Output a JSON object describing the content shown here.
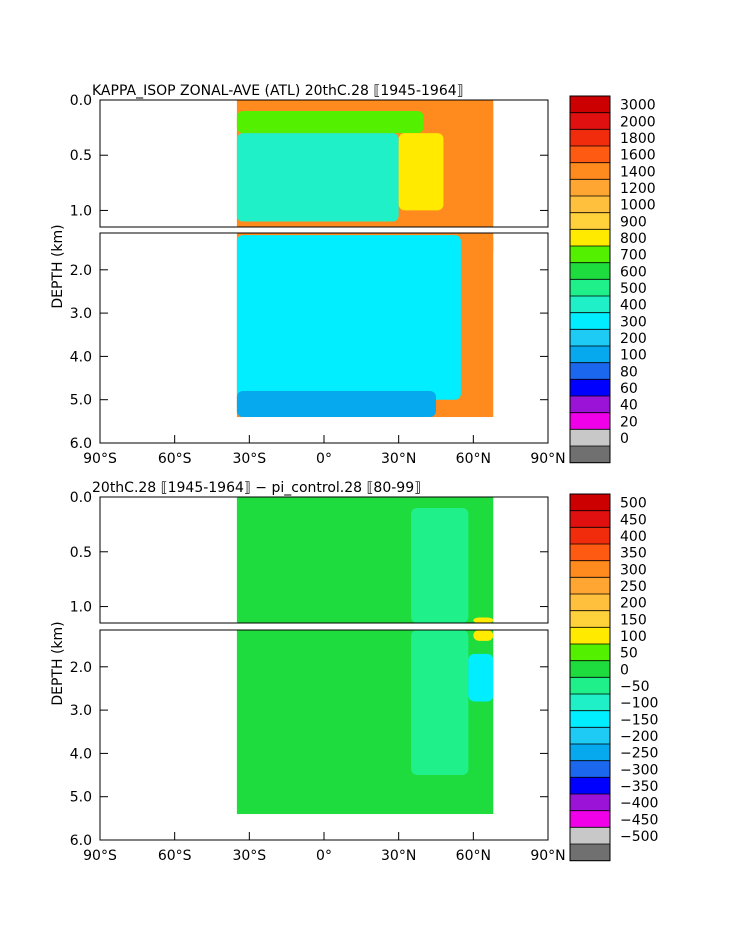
{
  "colors": {
    "background": "#ffffff",
    "frame": "#000000",
    "contour_line": "#000000",
    "ocean_fill_hint": "#00c8ff"
  },
  "chart_data": [
    {
      "type": "heatmap",
      "title": "KAPPA_ISOP ZONAL-AVE (ATL) 20thC.28 ⟦1945-1964⟧",
      "xlabel": "",
      "ylabel": "DEPTH (km)",
      "xlim": [
        -90,
        90
      ],
      "ylim_upper_panel": [
        0.0,
        1.15
      ],
      "ylim_lower_panel": [
        1.15,
        6.0
      ],
      "depth_split_km": 1.15,
      "x_ticks": [
        "90°S",
        "60°S",
        "30°S",
        "0°",
        "30°N",
        "60°N",
        "90°N"
      ],
      "y_ticks_upper": [
        "0.0",
        "0.5",
        "1.0"
      ],
      "y_ticks_lower": [
        "2.0",
        "3.0",
        "4.0",
        "5.0",
        "6.0"
      ],
      "colorbar": {
        "levels": [
          "3000",
          "2000",
          "1800",
          "1600",
          "1400",
          "1200",
          "1000",
          "900",
          "800",
          "700",
          "600",
          "500",
          "400",
          "300",
          "200",
          "100",
          "80",
          "60",
          "40",
          "20",
          "0"
        ],
        "colors": [
          "#cc0000",
          "#e01010",
          "#f02c0c",
          "#ff5a12",
          "#ff8a1e",
          "#ffa531",
          "#ffc03e",
          "#ffd23c",
          "#ffea00",
          "#53f000",
          "#1fdc3e",
          "#20f08a",
          "#20f0c8",
          "#00eeff",
          "#1ecbf5",
          "#06a8ee",
          "#1b68ee",
          "#0000ff",
          "#9a13d6",
          "#f000e8",
          "#c8c8c8",
          "#707070"
        ]
      },
      "data_domain": {
        "lat_min": -35,
        "lat_max": 68,
        "max_depth_km": 5.4
      },
      "field": [
        {
          "region": "surface layer 0-0.1 km",
          "lat_range": [
            -35,
            68
          ],
          "value": 1400
        },
        {
          "region": "upper subtropical 0.1-0.3 km",
          "lat_range": [
            -35,
            40
          ],
          "value": 700
        },
        {
          "region": "thermocline 0.3-1.1 km",
          "lat_range": [
            -35,
            30
          ],
          "value": 400
        },
        {
          "region": "N Atlantic mid-depth maximum",
          "lat_range": [
            30,
            48
          ],
          "value": 800
        },
        {
          "region": "subpolar boundary 0-1.7 km",
          "lat_range": [
            60,
            68
          ],
          "value": 1400
        },
        {
          "region": "deep interior 1.2-5 km",
          "lat_range": [
            -35,
            55
          ],
          "value": 300
        },
        {
          "region": "bottom water",
          "lat_range": [
            -35,
            45
          ],
          "value": 100
        }
      ]
    },
    {
      "type": "heatmap",
      "title": "20thC.28 ⟦1945-1964⟧ − pi_control.28 ⟦80-99⟧",
      "xlabel": "",
      "ylabel": "DEPTH (km)",
      "xlim": [
        -90,
        90
      ],
      "ylim_upper_panel": [
        0.0,
        1.15
      ],
      "ylim_lower_panel": [
        1.15,
        6.0
      ],
      "depth_split_km": 1.15,
      "x_ticks": [
        "90°S",
        "60°S",
        "30°S",
        "0°",
        "30°N",
        "60°N",
        "90°N"
      ],
      "y_ticks_upper": [
        "0.0",
        "0.5",
        "1.0"
      ],
      "y_ticks_lower": [
        "2.0",
        "3.0",
        "4.0",
        "5.0",
        "6.0"
      ],
      "colorbar": {
        "levels": [
          "500",
          "450",
          "400",
          "350",
          "300",
          "250",
          "200",
          "150",
          "100",
          "50",
          "0",
          "−50",
          "−100",
          "−150",
          "−200",
          "−250",
          "−300",
          "−350",
          "−400",
          "−450",
          "−500"
        ],
        "colors": [
          "#cc0000",
          "#e01010",
          "#f02c0c",
          "#ff5a12",
          "#ff8a1e",
          "#ffa531",
          "#ffc03e",
          "#ffd23c",
          "#ffea00",
          "#53f000",
          "#1fdc3e",
          "#20f08a",
          "#20f0c8",
          "#00eeff",
          "#1ecbf5",
          "#06a8ee",
          "#1b68ee",
          "#0000ff",
          "#9a13d6",
          "#f000e8",
          "#c8c8c8",
          "#707070"
        ]
      },
      "data_domain": {
        "lat_min": -35,
        "lat_max": 68,
        "max_depth_km": 5.4
      },
      "field": [
        {
          "region": "background difference",
          "lat_range": [
            -35,
            68
          ],
          "value": 25
        },
        {
          "region": "slightly negative band",
          "lat_range": [
            35,
            58
          ],
          "value": -25
        },
        {
          "region": "subpolar deep anomaly",
          "lat_range": [
            58,
            68
          ],
          "value": -150
        },
        {
          "region": "subpolar upper positive",
          "lat_range": [
            60,
            68
          ],
          "value": 100
        }
      ]
    }
  ]
}
